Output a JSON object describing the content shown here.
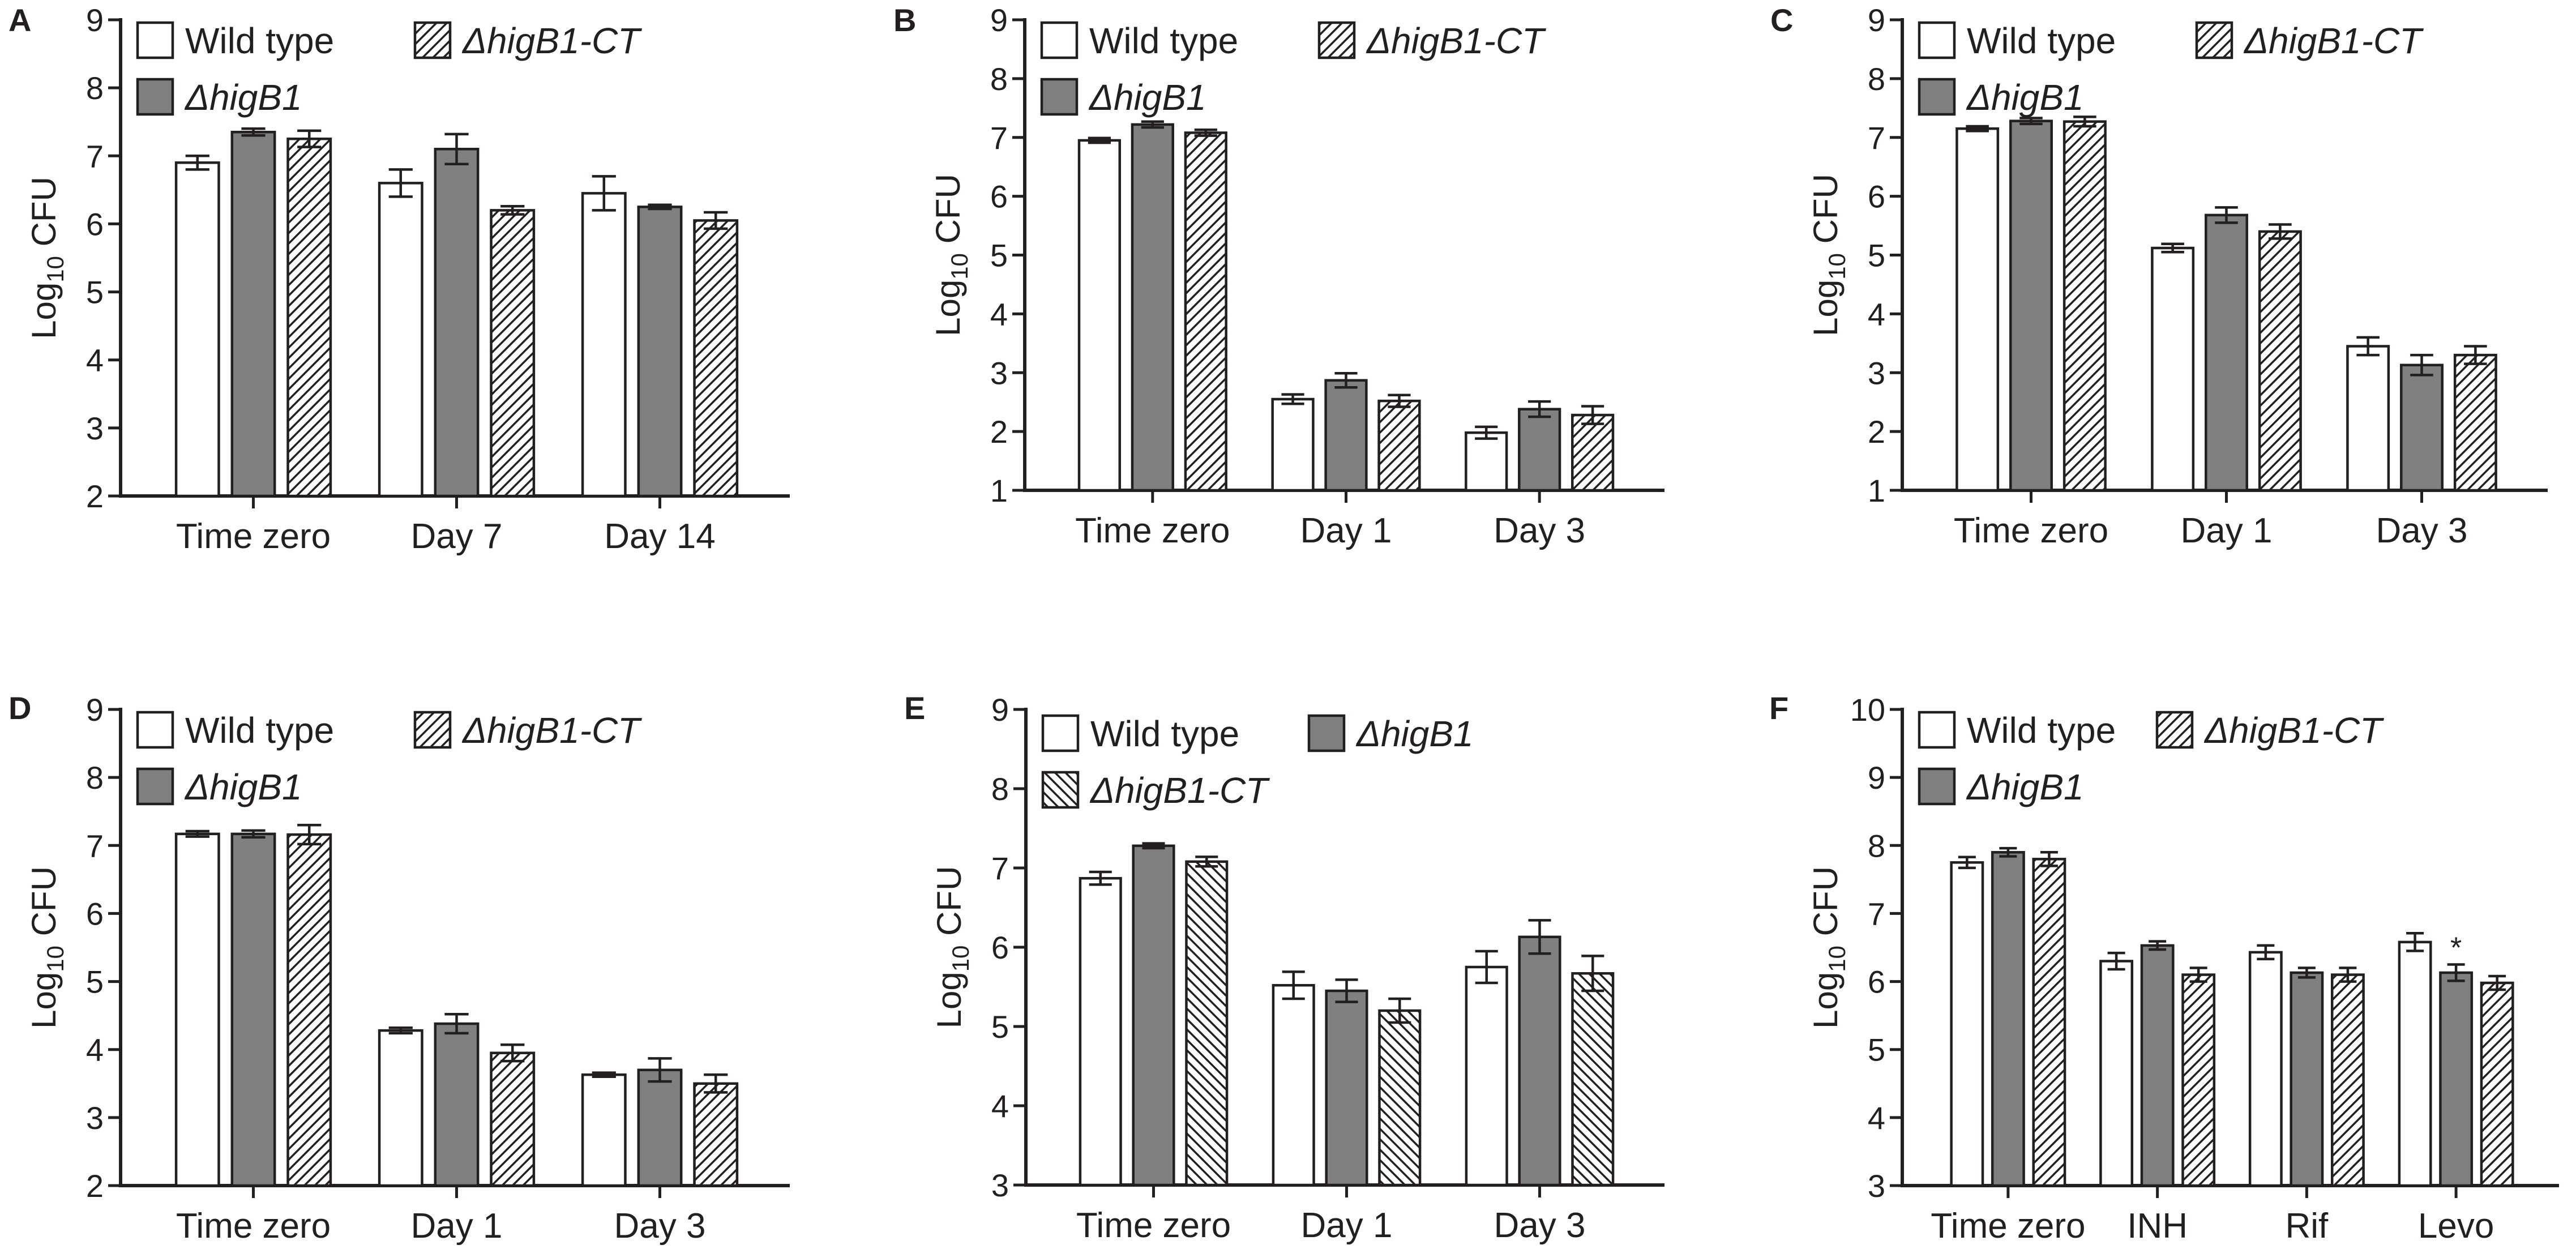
{
  "chart_data": [
    {
      "type": "bar",
      "panel_label": "A",
      "ylabel": {
        "main": "Log",
        "sub": "10",
        "unit": " CFU"
      },
      "ylim": [
        2,
        9
      ],
      "yticks": [
        "2",
        "3",
        "4",
        "5",
        "6",
        "7",
        "8",
        "9"
      ],
      "categories": [
        "Time zero",
        "Day 7",
        "Day 14"
      ],
      "legend_layout": "two-column",
      "series": [
        {
          "name": "Wild type",
          "pattern": "white",
          "values": [
            6.9,
            6.6,
            6.45
          ],
          "errors": [
            0.1,
            0.2,
            0.25
          ]
        },
        {
          "name": "ΔhigB1",
          "pattern": "gray",
          "values": [
            7.35,
            7.1,
            6.25
          ],
          "errors": [
            0.05,
            0.22,
            0.03
          ]
        },
        {
          "name": "ΔhigB1-CT",
          "pattern": "hatch-fwd",
          "values": [
            7.25,
            6.2,
            6.05
          ],
          "errors": [
            0.12,
            0.06,
            0.12
          ]
        }
      ],
      "annotations": []
    },
    {
      "type": "bar",
      "panel_label": "B",
      "ylabel": {
        "main": "Log",
        "sub": "10",
        "unit": " CFU"
      },
      "ylim": [
        1,
        9
      ],
      "yticks": [
        "1",
        "2",
        "3",
        "4",
        "5",
        "6",
        "7",
        "8",
        "9"
      ],
      "categories": [
        "Time zero",
        "Day 1",
        "Day 3"
      ],
      "legend_layout": "two-column",
      "series": [
        {
          "name": "Wild type",
          "pattern": "white",
          "values": [
            6.95,
            2.55,
            1.98
          ],
          "errors": [
            0.04,
            0.08,
            0.1
          ]
        },
        {
          "name": "ΔhigB1",
          "pattern": "gray",
          "values": [
            7.22,
            2.87,
            2.38
          ],
          "errors": [
            0.05,
            0.12,
            0.13
          ]
        },
        {
          "name": "ΔhigB1-CT",
          "pattern": "hatch-fwd",
          "values": [
            7.08,
            2.52,
            2.28
          ],
          "errors": [
            0.05,
            0.1,
            0.15
          ]
        }
      ],
      "annotations": []
    },
    {
      "type": "bar",
      "panel_label": "C",
      "ylabel": {
        "main": "Log",
        "sub": "10",
        "unit": " CFU"
      },
      "ylim": [
        1,
        9
      ],
      "yticks": [
        "1",
        "2",
        "3",
        "4",
        "5",
        "6",
        "7",
        "8",
        "9"
      ],
      "categories": [
        "Time zero",
        "Day 1",
        "Day 3"
      ],
      "legend_layout": "two-column",
      "series": [
        {
          "name": "Wild type",
          "pattern": "white",
          "values": [
            7.15,
            5.12,
            3.45
          ],
          "errors": [
            0.04,
            0.07,
            0.15
          ]
        },
        {
          "name": "ΔhigB1",
          "pattern": "gray",
          "values": [
            7.28,
            5.68,
            3.13
          ],
          "errors": [
            0.05,
            0.13,
            0.17
          ]
        },
        {
          "name": "ΔhigB1-CT",
          "pattern": "hatch-fwd",
          "values": [
            7.27,
            5.4,
            3.3
          ],
          "errors": [
            0.08,
            0.12,
            0.15
          ]
        }
      ],
      "annotations": []
    },
    {
      "type": "bar",
      "panel_label": "D",
      "ylabel": {
        "main": "Log",
        "sub": "10",
        "unit": " CFU"
      },
      "ylim": [
        2,
        9
      ],
      "yticks": [
        "2",
        "3",
        "4",
        "5",
        "6",
        "7",
        "8",
        "9"
      ],
      "categories": [
        "Time zero",
        "Day 1",
        "Day 3"
      ],
      "legend_layout": "two-column",
      "series": [
        {
          "name": "Wild type",
          "pattern": "white",
          "values": [
            7.17,
            4.28,
            3.63
          ],
          "errors": [
            0.04,
            0.04,
            0.03
          ]
        },
        {
          "name": "ΔhigB1",
          "pattern": "gray",
          "values": [
            7.17,
            4.38,
            3.7
          ],
          "errors": [
            0.05,
            0.14,
            0.17
          ]
        },
        {
          "name": "ΔhigB1-CT",
          "pattern": "hatch-fwd",
          "values": [
            7.16,
            3.95,
            3.5
          ],
          "errors": [
            0.14,
            0.12,
            0.13
          ]
        }
      ],
      "annotations": []
    },
    {
      "type": "bar",
      "panel_label": "E",
      "ylabel": {
        "main": "Log",
        "sub": "10",
        "unit": " CFU"
      },
      "ylim": [
        3,
        9
      ],
      "yticks": [
        "3",
        "4",
        "5",
        "6",
        "7",
        "8",
        "9"
      ],
      "categories": [
        "Time zero",
        "Day 1",
        "Day 3"
      ],
      "legend_layout": "row",
      "series": [
        {
          "name": "Wild type",
          "pattern": "white",
          "values": [
            6.87,
            5.52,
            5.75
          ],
          "errors": [
            0.08,
            0.17,
            0.2
          ]
        },
        {
          "name": "ΔhigB1",
          "pattern": "gray",
          "values": [
            7.28,
            5.45,
            6.13
          ],
          "errors": [
            0.03,
            0.14,
            0.21
          ]
        },
        {
          "name": "ΔhigB1-CT",
          "pattern": "hatch-back",
          "values": [
            7.08,
            5.2,
            5.67
          ],
          "errors": [
            0.06,
            0.15,
            0.22
          ]
        }
      ],
      "annotations": []
    },
    {
      "type": "bar",
      "panel_label": "F",
      "ylabel": {
        "main": "Log",
        "sub": "10",
        "unit": " CFU"
      },
      "ylim": [
        3,
        10
      ],
      "yticks": [
        "3",
        "4",
        "5",
        "6",
        "7",
        "8",
        "9",
        "10"
      ],
      "categories": [
        "Time zero",
        "INH",
        "Rif",
        "Levo"
      ],
      "legend_layout": "two-column",
      "series": [
        {
          "name": "Wild type",
          "pattern": "white",
          "values": [
            7.75,
            6.3,
            6.43,
            6.58
          ],
          "errors": [
            0.08,
            0.12,
            0.1,
            0.13
          ]
        },
        {
          "name": "ΔhigB1",
          "pattern": "gray",
          "values": [
            7.9,
            6.53,
            6.13,
            6.13
          ],
          "errors": [
            0.06,
            0.06,
            0.07,
            0.12
          ]
        },
        {
          "name": "ΔhigB1-CT",
          "pattern": "hatch-fwd",
          "values": [
            7.8,
            6.1,
            6.1,
            5.98
          ],
          "errors": [
            0.1,
            0.1,
            0.1,
            0.1
          ]
        }
      ],
      "annotations": [
        {
          "category": 3,
          "series": 1,
          "text": "*"
        }
      ]
    }
  ]
}
